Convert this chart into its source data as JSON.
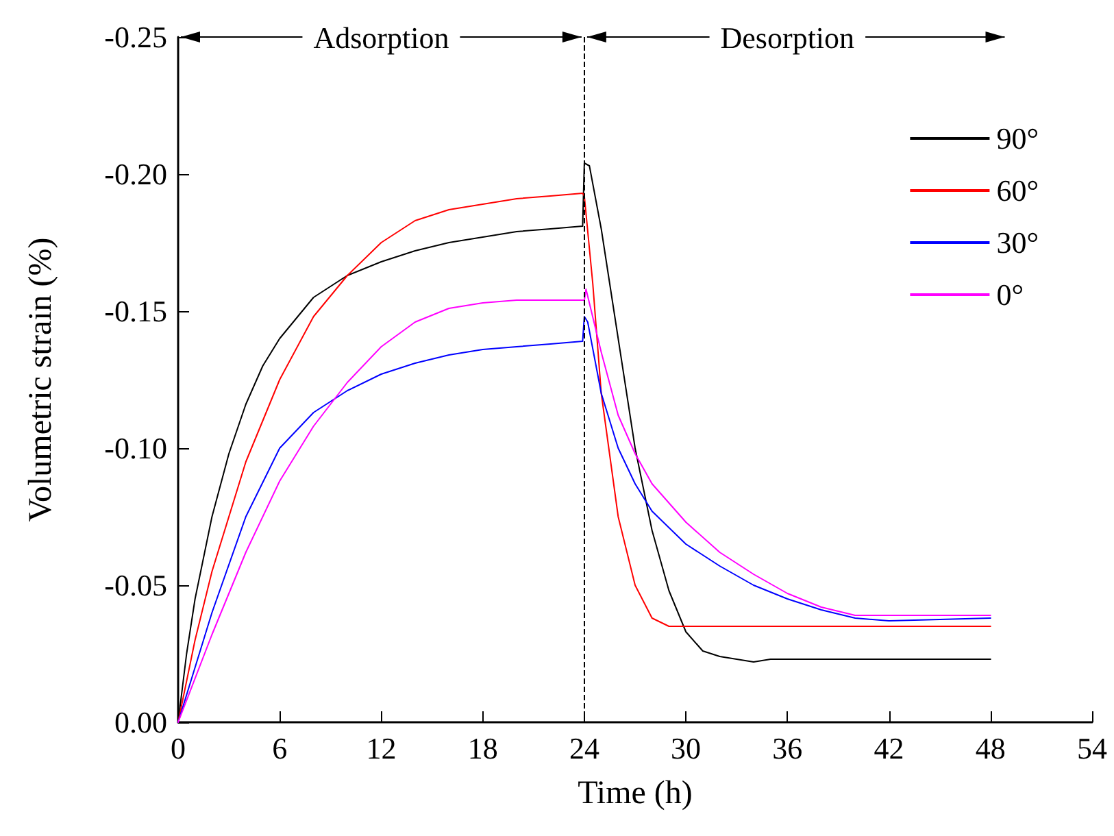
{
  "chart_data": {
    "type": "line",
    "xlabel": "Time (h)",
    "ylabel": "Volumetric strain (%)",
    "xlim": [
      0,
      54
    ],
    "xticks": [
      0,
      6,
      12,
      18,
      24,
      30,
      36,
      42,
      48,
      54
    ],
    "ylim": [
      0,
      -0.25
    ],
    "yticks": [
      {
        "value": 0,
        "label": "0.00"
      },
      {
        "value": -0.05,
        "label": "-0.05"
      },
      {
        "value": -0.1,
        "label": "-0.10"
      },
      {
        "value": -0.15,
        "label": "-0.15"
      },
      {
        "value": -0.2,
        "label": "-0.20"
      },
      {
        "value": -0.25,
        "label": "-0.25"
      }
    ],
    "grid": false,
    "legend": "top right",
    "marker": "none",
    "line_style": "solid",
    "ref_lines": [
      {
        "axis": "x",
        "value": 24,
        "line_style": "dashed",
        "color": "#000000"
      }
    ],
    "annotations": [
      "Adsorption",
      "Desorption"
    ],
    "series": [
      {
        "name": "90°",
        "color": "#000000",
        "x": [
          0,
          0.5,
          1,
          2,
          3,
          4,
          5,
          6,
          8,
          10,
          12,
          14,
          16,
          18,
          20,
          22,
          23.9,
          24,
          24.3,
          25,
          26,
          27,
          28,
          29,
          30,
          31,
          32,
          33,
          34,
          35,
          40,
          48
        ],
        "values": [
          0,
          -0.025,
          -0.045,
          -0.075,
          -0.098,
          -0.116,
          -0.13,
          -0.14,
          -0.155,
          -0.163,
          -0.168,
          -0.172,
          -0.175,
          -0.177,
          -0.179,
          -0.18,
          -0.181,
          -0.204,
          -0.203,
          -0.18,
          -0.14,
          -0.1,
          -0.07,
          -0.048,
          -0.033,
          -0.026,
          -0.024,
          -0.023,
          -0.022,
          -0.023,
          -0.023,
          -0.023
        ]
      },
      {
        "name": "60°",
        "color": "#ff0000",
        "x": [
          0,
          1,
          2,
          4,
          6,
          8,
          10,
          12,
          14,
          16,
          18,
          20,
          22,
          23.9,
          24,
          24.5,
          25,
          26,
          27,
          28,
          29,
          30,
          48
        ],
        "values": [
          0,
          -0.03,
          -0.055,
          -0.095,
          -0.125,
          -0.148,
          -0.163,
          -0.175,
          -0.183,
          -0.187,
          -0.189,
          -0.191,
          -0.192,
          -0.193,
          -0.192,
          -0.16,
          -0.12,
          -0.075,
          -0.05,
          -0.038,
          -0.035,
          -0.035,
          -0.035
        ]
      },
      {
        "name": "30°",
        "color": "#0000ff",
        "x": [
          0,
          1,
          2,
          4,
          6,
          8,
          10,
          12,
          14,
          16,
          18,
          20,
          22,
          23.9,
          24,
          24.2,
          25,
          26,
          27,
          28,
          30,
          32,
          34,
          36,
          38,
          40,
          42,
          48
        ],
        "values": [
          0,
          -0.02,
          -0.04,
          -0.075,
          -0.1,
          -0.113,
          -0.121,
          -0.127,
          -0.131,
          -0.134,
          -0.136,
          -0.137,
          -0.138,
          -0.139,
          -0.148,
          -0.146,
          -0.12,
          -0.1,
          -0.087,
          -0.077,
          -0.065,
          -0.057,
          -0.05,
          -0.045,
          -0.041,
          -0.038,
          -0.037,
          -0.038
        ]
      },
      {
        "name": "0°",
        "color": "#ff00ff",
        "x": [
          0,
          2,
          4,
          6,
          8,
          10,
          12,
          14,
          16,
          18,
          20,
          24,
          24.1,
          25,
          26,
          27,
          28,
          30,
          32,
          34,
          36,
          38,
          40,
          42,
          48
        ],
        "values": [
          0,
          -0.032,
          -0.062,
          -0.088,
          -0.108,
          -0.124,
          -0.137,
          -0.146,
          -0.151,
          -0.153,
          -0.154,
          -0.154,
          -0.158,
          -0.135,
          -0.112,
          -0.098,
          -0.087,
          -0.073,
          -0.062,
          -0.054,
          -0.047,
          -0.042,
          -0.039,
          -0.039,
          -0.039
        ]
      }
    ]
  }
}
